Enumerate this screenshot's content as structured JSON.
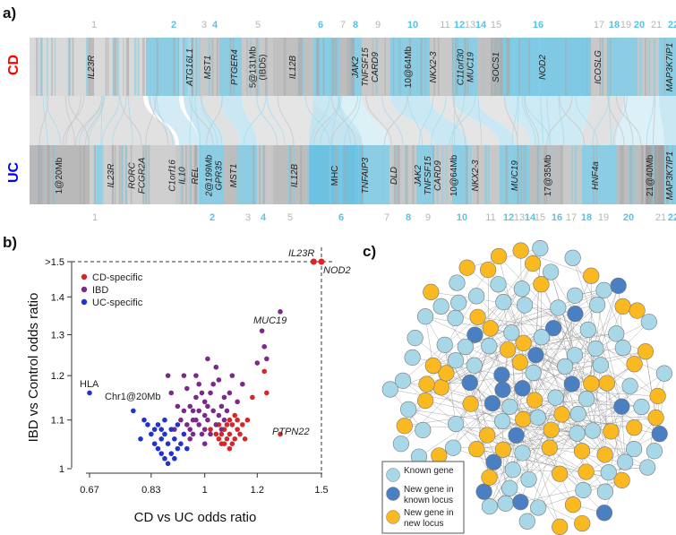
{
  "panels": {
    "a": "a)",
    "b": "b)",
    "c": "c)"
  },
  "track_a": {
    "cd_label": "CD",
    "uc_label": "UC",
    "cd_color": "#ff0000",
    "uc_color": "#0000ff",
    "top_numbers": [
      {
        "t": "1",
        "blue": false
      },
      {
        "t": "2",
        "blue": true
      },
      {
        "t": "3",
        "blue": false
      },
      {
        "t": "4",
        "blue": true
      },
      {
        "t": "5",
        "blue": false
      },
      {
        "t": "6",
        "blue": true
      },
      {
        "t": "7",
        "blue": false
      },
      {
        "t": "8",
        "blue": true
      },
      {
        "t": "9",
        "blue": false
      },
      {
        "t": "10",
        "blue": true
      },
      {
        "t": "11",
        "blue": false
      },
      {
        "t": "12",
        "blue": true
      },
      {
        "t": "13",
        "blue": false
      },
      {
        "t": "14",
        "blue": true
      },
      {
        "t": "15",
        "blue": false
      },
      {
        "t": "16",
        "blue": true
      },
      {
        "t": "17",
        "blue": false
      },
      {
        "t": "18",
        "blue": true
      },
      {
        "t": "19",
        "blue": false
      },
      {
        "t": "20",
        "blue": true
      },
      {
        "t": "21",
        "blue": false
      },
      {
        "t": "22",
        "blue": true
      }
    ],
    "bottom_numbers": [
      {
        "t": "1",
        "blue": false
      },
      {
        "t": "2",
        "blue": true
      },
      {
        "t": "3",
        "blue": false
      },
      {
        "t": "4",
        "blue": true
      },
      {
        "t": "5",
        "blue": false
      },
      {
        "t": "6",
        "blue": true
      },
      {
        "t": "7",
        "blue": false
      },
      {
        "t": "8",
        "blue": true
      },
      {
        "t": "9",
        "blue": false
      },
      {
        "t": "10",
        "blue": true
      },
      {
        "t": "11",
        "blue": false
      },
      {
        "t": "12",
        "blue": true
      },
      {
        "t": "13",
        "blue": false
      },
      {
        "t": "14",
        "blue": true
      },
      {
        "t": "15",
        "blue": false
      },
      {
        "t": "16",
        "blue": true
      },
      {
        "t": "17",
        "blue": false
      },
      {
        "t": "18",
        "blue": true
      },
      {
        "t": "19",
        "blue": false
      },
      {
        "t": "20",
        "blue": true
      },
      {
        "t": "21",
        "blue": false
      },
      {
        "t": "22",
        "blue": true
      }
    ],
    "cd_genes": [
      {
        "t": "IL23R",
        "it": true
      },
      {
        "t": "ATG16L1",
        "it": true
      },
      {
        "t": "MST1",
        "it": true
      },
      {
        "t": "PTGER4",
        "it": true
      },
      {
        "t": "5@131Mb\n(IBD5)",
        "it": false
      },
      {
        "t": "IL12B",
        "it": true
      },
      {
        "t": "JAK2\nTNFSF15\nCARD9",
        "it": true
      },
      {
        "t": "10@64Mb",
        "it": false
      },
      {
        "t": "NKX2-3",
        "it": true
      },
      {
        "t": "C11orf30\nMUC19",
        "it": true
      },
      {
        "t": "SOCS1",
        "it": true
      },
      {
        "t": "NOD2",
        "it": true
      },
      {
        "t": "ICOSLG",
        "it": true
      },
      {
        "t": "MAP3K7IP1",
        "it": true
      }
    ],
    "uc_genes": [
      {
        "t": "1@20Mb",
        "it": false
      },
      {
        "t": "IL23R",
        "it": true
      },
      {
        "t": "RORC\nFCGR2A",
        "it": true
      },
      {
        "t": "C1orf16\nIL10",
        "it": true
      },
      {
        "t": "REL",
        "it": true
      },
      {
        "t": "2@199Mb\nGPR35",
        "it": true
      },
      {
        "t": "MST1",
        "it": true
      },
      {
        "t": "IL12B",
        "it": true
      },
      {
        "t": "MHC",
        "it": false
      },
      {
        "t": "TNFAIP3",
        "it": true
      },
      {
        "t": "DLD",
        "it": true
      },
      {
        "t": "JAK2\nTNFSF15\nCARD9",
        "it": true
      },
      {
        "t": "10@64Mb",
        "it": false
      },
      {
        "t": "NKX2-3",
        "it": true
      },
      {
        "t": "MUC19",
        "it": true
      },
      {
        "t": "17@35Mb",
        "it": false
      },
      {
        "t": "HNF4a",
        "it": true
      },
      {
        "t": "21@40Mb",
        "it": false
      },
      {
        "t": "MAP3K7IP1",
        "it": true
      }
    ]
  },
  "chart_data": [
    {
      "type": "scatter",
      "xlabel": "CD vs UC odds ratio",
      "ylabel": "IBD vs Control odds ratio",
      "x_ticks": [
        "0.67",
        "0.83",
        "1",
        "1.2",
        "1.5"
      ],
      "y_ticks": [
        "1",
        "1.1",
        "1.2",
        "1.3",
        "1.4",
        ">1.5"
      ],
      "xlim": [
        0.64,
        1.55
      ],
      "ylim": [
        0.97,
        1.55
      ],
      "log_scale": true,
      "legend_position": "top-left",
      "series": [
        {
          "name": "CD-specific",
          "color": "#d62728",
          "points": [
            [
              1.07,
              1.08
            ],
            [
              1.09,
              1.07
            ],
            [
              1.1,
              1.09
            ],
            [
              1.06,
              1.07
            ],
            [
              1.08,
              1.06
            ],
            [
              1.12,
              1.08
            ],
            [
              1.05,
              1.09
            ],
            [
              1.11,
              1.06
            ],
            [
              1.09,
              1.1
            ],
            [
              1.13,
              1.07
            ],
            [
              1.07,
              1.05
            ],
            [
              1.04,
              1.07
            ],
            [
              1.1,
              1.05
            ],
            [
              1.08,
              1.09
            ],
            [
              1.12,
              1.1
            ],
            [
              1.06,
              1.05
            ],
            [
              1.14,
              1.09
            ],
            [
              1.02,
              1.08
            ],
            [
              1.15,
              1.06
            ],
            [
              1.11,
              1.11
            ],
            [
              1.05,
              1.06
            ],
            [
              1.09,
              1.04
            ],
            [
              1.16,
              1.1
            ],
            [
              1.23,
              1.21
            ],
            [
              1.24,
              1.16
            ],
            [
              1.18,
              1.15
            ],
            [
              1.3,
              1.07
            ]
          ]
        },
        {
          "name": "IBD",
          "color": "#7b2a8a",
          "points": [
            [
              0.96,
              1.1
            ],
            [
              0.98,
              1.12
            ],
            [
              1.0,
              1.08
            ],
            [
              0.95,
              1.13
            ],
            [
              0.97,
              1.15
            ],
            [
              1.01,
              1.1
            ],
            [
              0.99,
              1.07
            ],
            [
              1.03,
              1.12
            ],
            [
              0.94,
              1.09
            ],
            [
              1.02,
              1.16
            ],
            [
              0.98,
              1.18
            ],
            [
              1.05,
              1.11
            ],
            [
              0.93,
              1.12
            ],
            [
              1.0,
              1.14
            ],
            [
              0.96,
              1.07
            ],
            [
              1.04,
              1.09
            ],
            [
              0.97,
              1.1
            ],
            [
              1.01,
              1.13
            ],
            [
              0.92,
              1.1
            ],
            [
              1.06,
              1.13
            ],
            [
              0.99,
              1.16
            ],
            [
              0.95,
              1.06
            ],
            [
              1.03,
              1.18
            ],
            [
              0.97,
              1.2
            ],
            [
              1.07,
              1.15
            ],
            [
              0.91,
              1.13
            ],
            [
              1.0,
              1.11
            ],
            [
              1.08,
              1.12
            ],
            [
              0.94,
              1.17
            ],
            [
              1.02,
              1.07
            ],
            [
              1.05,
              1.19
            ],
            [
              0.9,
              1.08
            ],
            [
              1.09,
              1.16
            ],
            [
              0.98,
              1.09
            ],
            [
              1.1,
              1.2
            ],
            [
              0.93,
              1.2
            ],
            [
              1.06,
              1.08
            ],
            [
              1.12,
              1.14
            ],
            [
              0.89,
              1.16
            ],
            [
              1.04,
              1.22
            ],
            [
              0.88,
              1.2
            ],
            [
              1.14,
              1.18
            ],
            [
              1.01,
              1.24
            ],
            [
              1.2,
              1.23
            ],
            [
              1.23,
              1.27
            ],
            [
              1.24,
              1.24
            ],
            [
              1.22,
              1.31
            ],
            [
              1.3,
              1.36
            ],
            [
              0.96,
              1.12
            ],
            [
              1.0,
              1.05
            ],
            [
              0.95,
              1.08
            ],
            [
              1.07,
              1.1
            ]
          ]
        },
        {
          "name": "UC-specific",
          "color": "#2233cc",
          "points": [
            [
              0.67,
              1.16
            ],
            [
              0.78,
              1.12
            ],
            [
              0.81,
              1.1
            ],
            [
              0.84,
              1.08
            ],
            [
              0.86,
              1.06
            ],
            [
              0.85,
              1.04
            ],
            [
              0.87,
              1.02
            ],
            [
              0.88,
              1.05
            ],
            [
              0.83,
              1.07
            ],
            [
              0.89,
              1.03
            ],
            [
              0.9,
              1.06
            ],
            [
              0.82,
              1.09
            ],
            [
              0.86,
              1.08
            ],
            [
              0.88,
              1.01
            ],
            [
              0.91,
              1.04
            ],
            [
              0.84,
              1.05
            ],
            [
              0.87,
              1.07
            ],
            [
              0.92,
              1.05
            ],
            [
              0.85,
              1.09
            ],
            [
              0.9,
              1.02
            ],
            [
              0.93,
              1.07
            ],
            [
              0.86,
              1.03
            ],
            [
              0.89,
              1.08
            ],
            [
              0.94,
              1.04
            ],
            [
              0.8,
              1.06
            ],
            [
              0.87,
              1.1
            ],
            [
              0.91,
              1.09
            ]
          ]
        },
        {
          "name": "",
          "color": "#e8221b",
          "points": [
            [
              1.5,
              1.5
            ]
          ]
        },
        {
          "name": "",
          "color": "#d62728",
          "points": [
            [
              1.46,
              1.5
            ]
          ]
        }
      ],
      "annotations": [
        {
          "text": "IL23R",
          "italic": true
        },
        {
          "text": "NOD2",
          "italic": true
        },
        {
          "text": "MUC19",
          "italic": true
        },
        {
          "text": "HLA",
          "italic": false
        },
        {
          "text": "Chr1@20Mb",
          "italic": false
        },
        {
          "text": "PTPN22",
          "italic": true
        }
      ]
    }
  ],
  "network": {
    "legend": [
      {
        "label": "Known gene",
        "color": "#a8d8e8"
      },
      {
        "label": "New gene in\nknown locus",
        "color": "#4a7fc1"
      },
      {
        "label": "New gene in\nnew locus",
        "color": "#fbb921"
      }
    ]
  }
}
